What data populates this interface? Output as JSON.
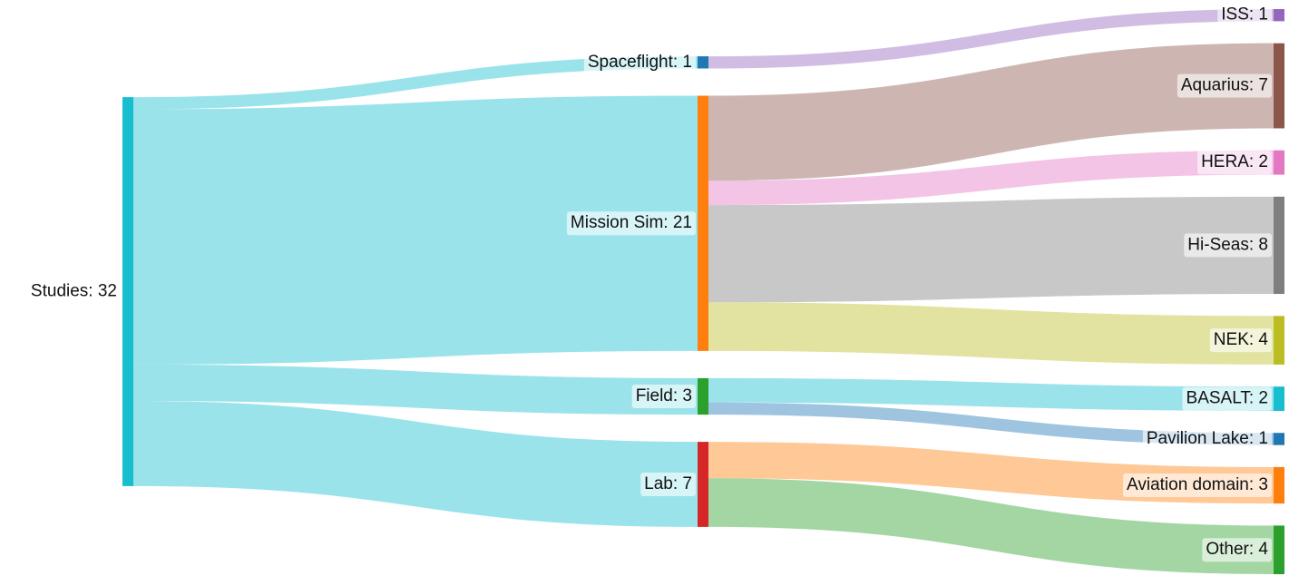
{
  "chart_data": {
    "type": "sankey",
    "nodes": [
      {
        "label": "Studies: 32",
        "value": 32,
        "column": 0,
        "color": "#17becf"
      },
      {
        "label": "Spaceflight: 1",
        "value": 1,
        "column": 1,
        "color": "#1f77b4"
      },
      {
        "label": "Mission Sim: 21",
        "value": 21,
        "column": 1,
        "color": "#ff7f0e"
      },
      {
        "label": "Field: 3",
        "value": 3,
        "column": 1,
        "color": "#2ca02c"
      },
      {
        "label": "Lab: 7",
        "value": 7,
        "column": 1,
        "color": "#d62728"
      },
      {
        "label": "ISS: 1",
        "value": 1,
        "column": 2,
        "color": "#9467bd"
      },
      {
        "label": "Aquarius: 7",
        "value": 7,
        "column": 2,
        "color": "#8c564b"
      },
      {
        "label": "HERA: 2",
        "value": 2,
        "column": 2,
        "color": "#e377c2"
      },
      {
        "label": "Hi-Seas: 8",
        "value": 8,
        "column": 2,
        "color": "#7f7f7f"
      },
      {
        "label": "NEK: 4",
        "value": 4,
        "column": 2,
        "color": "#bcbd22"
      },
      {
        "label": "BASALT: 2",
        "value": 2,
        "column": 2,
        "color": "#17becf"
      },
      {
        "label": "Pavilion Lake: 1",
        "value": 1,
        "column": 2,
        "color": "#1f77b4"
      },
      {
        "label": "Aviation domain: 3",
        "value": 3,
        "column": 2,
        "color": "#ff7f0e"
      },
      {
        "label": "Other: 4",
        "value": 4,
        "column": 2,
        "color": "#2ca02c"
      }
    ],
    "links": [
      {
        "source": 0,
        "target": 1,
        "value": 1,
        "color": "#17becf"
      },
      {
        "source": 0,
        "target": 2,
        "value": 21,
        "color": "#17becf"
      },
      {
        "source": 0,
        "target": 3,
        "value": 3,
        "color": "#17becf"
      },
      {
        "source": 0,
        "target": 4,
        "value": 7,
        "color": "#17becf"
      },
      {
        "source": 1,
        "target": 5,
        "value": 1,
        "color": "#9467bd"
      },
      {
        "source": 2,
        "target": 6,
        "value": 7,
        "color": "#8c564b"
      },
      {
        "source": 2,
        "target": 7,
        "value": 2,
        "color": "#e377c2"
      },
      {
        "source": 2,
        "target": 8,
        "value": 8,
        "color": "#7f7f7f"
      },
      {
        "source": 2,
        "target": 9,
        "value": 4,
        "color": "#bcbd22"
      },
      {
        "source": 3,
        "target": 10,
        "value": 2,
        "color": "#17becf"
      },
      {
        "source": 3,
        "target": 11,
        "value": 1,
        "color": "#1f77b4"
      },
      {
        "source": 4,
        "target": 12,
        "value": 3,
        "color": "#ff7f0e"
      },
      {
        "source": 4,
        "target": 13,
        "value": 4,
        "color": "#2ca02c"
      }
    ]
  }
}
